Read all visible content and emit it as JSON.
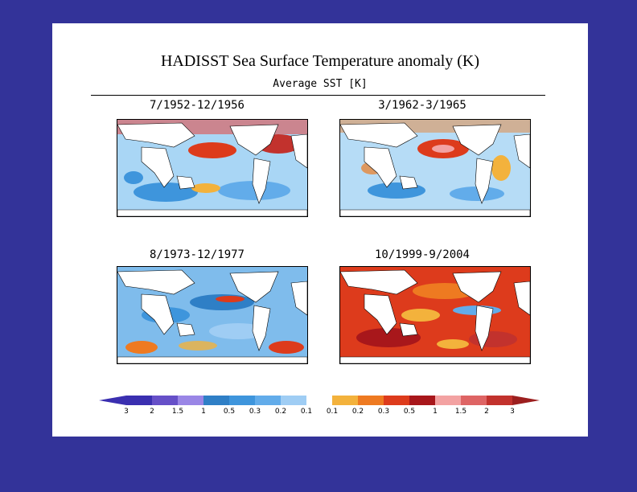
{
  "title": "HADISST Sea Surface Temperature anomaly (K)",
  "subtitle": "Average SST [K]",
  "chart_data": {
    "type": "heatmap",
    "title": "HADISST Sea Surface Temperature anomaly (K)",
    "subtitle": "Average SST [K]",
    "panels": [
      {
        "label": "7/1952-12/1956",
        "pattern": "warm North Pacific and North Atlantic, cool tropics and Southern Hemisphere"
      },
      {
        "label": "3/1962-3/1965",
        "pattern": "warm central North Pacific, mixed cool/warm elsewhere"
      },
      {
        "label": "8/1973-12/1977",
        "pattern": "cool tropical and North Pacific, warm pockets in South Atlantic"
      },
      {
        "label": "10/1999-9/2004",
        "pattern": "widespread warm anomalies, cool eastern equatorial Pacific"
      }
    ],
    "colorbar": {
      "ticks": [
        "3",
        "2",
        "1.5",
        "1",
        "0.5",
        "0.3",
        "0.2",
        "0.1",
        "0.1",
        "0.2",
        "0.3",
        "0.5",
        "1",
        "1.5",
        "2",
        "3"
      ],
      "colors": [
        "#3a2fb0",
        "#6650c8",
        "#9a86e6",
        "#2f7fc6",
        "#3e95dc",
        "#62acea",
        "#9fcdf4",
        "#ffffff",
        "#f3b23c",
        "#ee7a21",
        "#dd3b1c",
        "#a8171b",
        "#f3a2a2",
        "#de6464",
        "#c2322d"
      ]
    }
  },
  "colors": {
    "background": "#333399",
    "land": "#ffffff",
    "coast": "#000000"
  }
}
